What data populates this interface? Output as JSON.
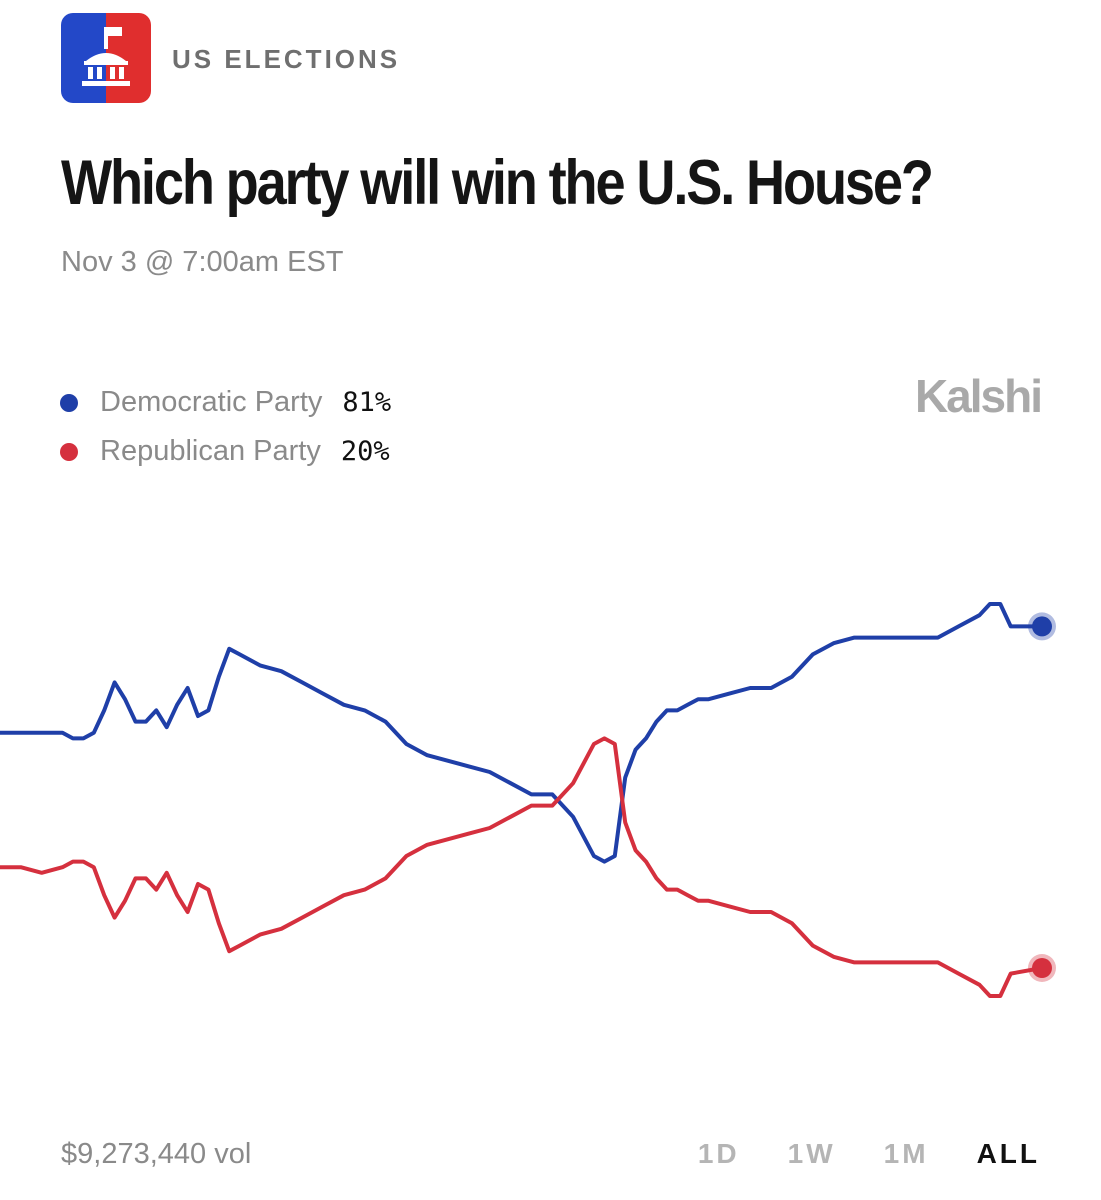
{
  "header": {
    "category": "US ELECTIONS",
    "icon": "capitol-building-icon",
    "title": "Which party will win the U.S. House?",
    "subtitle": "Nov 3 @ 7:00am EST"
  },
  "brand": "Kalshi",
  "legend": [
    {
      "name": "Democratic Party",
      "value": "81%",
      "color": "#1f3fa8"
    },
    {
      "name": "Republican Party",
      "value": "20%",
      "color": "#d5303e"
    }
  ],
  "footer": {
    "volume": "$9,273,440 vol",
    "ranges": [
      "1D",
      "1W",
      "1M",
      "ALL"
    ],
    "active_range": "ALL"
  },
  "colors": {
    "democratic": "#1f3fa8",
    "republican": "#d5303e",
    "icon_blue": "#2348c8",
    "icon_red": "#e02e2e"
  },
  "chart_data": {
    "type": "line",
    "x": [
      0,
      2,
      4,
      6,
      7,
      8,
      9,
      10,
      11,
      12,
      13,
      14,
      15,
      16,
      17,
      18,
      19,
      20,
      21,
      22,
      23,
      24,
      25,
      27,
      29,
      31,
      33,
      35,
      37,
      39,
      41,
      43,
      45,
      47,
      49,
      51,
      53,
      55,
      57,
      58,
      59,
      60,
      61,
      62,
      63,
      64,
      65,
      66,
      67,
      68,
      70,
      72,
      74,
      76,
      78,
      80,
      82,
      84,
      86,
      88,
      90,
      92,
      94,
      95,
      96,
      97,
      100
    ],
    "ylim": [
      0,
      100
    ],
    "series": [
      {
        "name": "Democratic Party",
        "color": "#1f3fa8",
        "values": [
          62,
          62,
          62,
          62,
          61,
          61,
          62,
          66,
          71,
          68,
          64,
          64,
          66,
          63,
          67,
          70,
          65,
          66,
          72,
          77,
          76,
          75,
          74,
          73,
          71,
          69,
          67,
          66,
          64,
          60,
          58,
          57,
          56,
          55,
          53,
          51,
          51,
          47,
          40,
          39,
          40,
          54,
          59,
          61,
          64,
          66,
          66,
          67,
          68,
          68,
          69,
          70,
          70,
          72,
          76,
          78,
          79,
          79,
          79,
          79,
          79,
          81,
          83,
          85,
          85,
          81,
          81
        ]
      },
      {
        "name": "Republican Party",
        "color": "#d5303e",
        "values": [
          38,
          38,
          37,
          38,
          39,
          39,
          38,
          33,
          29,
          32,
          36,
          36,
          34,
          37,
          33,
          30,
          35,
          34,
          28,
          23,
          24,
          25,
          26,
          27,
          29,
          31,
          33,
          34,
          36,
          40,
          42,
          43,
          44,
          45,
          47,
          49,
          49,
          53,
          60,
          61,
          60,
          46,
          41,
          39,
          36,
          34,
          34,
          33,
          32,
          32,
          31,
          30,
          30,
          28,
          24,
          22,
          21,
          21,
          21,
          21,
          21,
          19,
          17,
          15,
          15,
          19,
          20
        ]
      }
    ]
  }
}
